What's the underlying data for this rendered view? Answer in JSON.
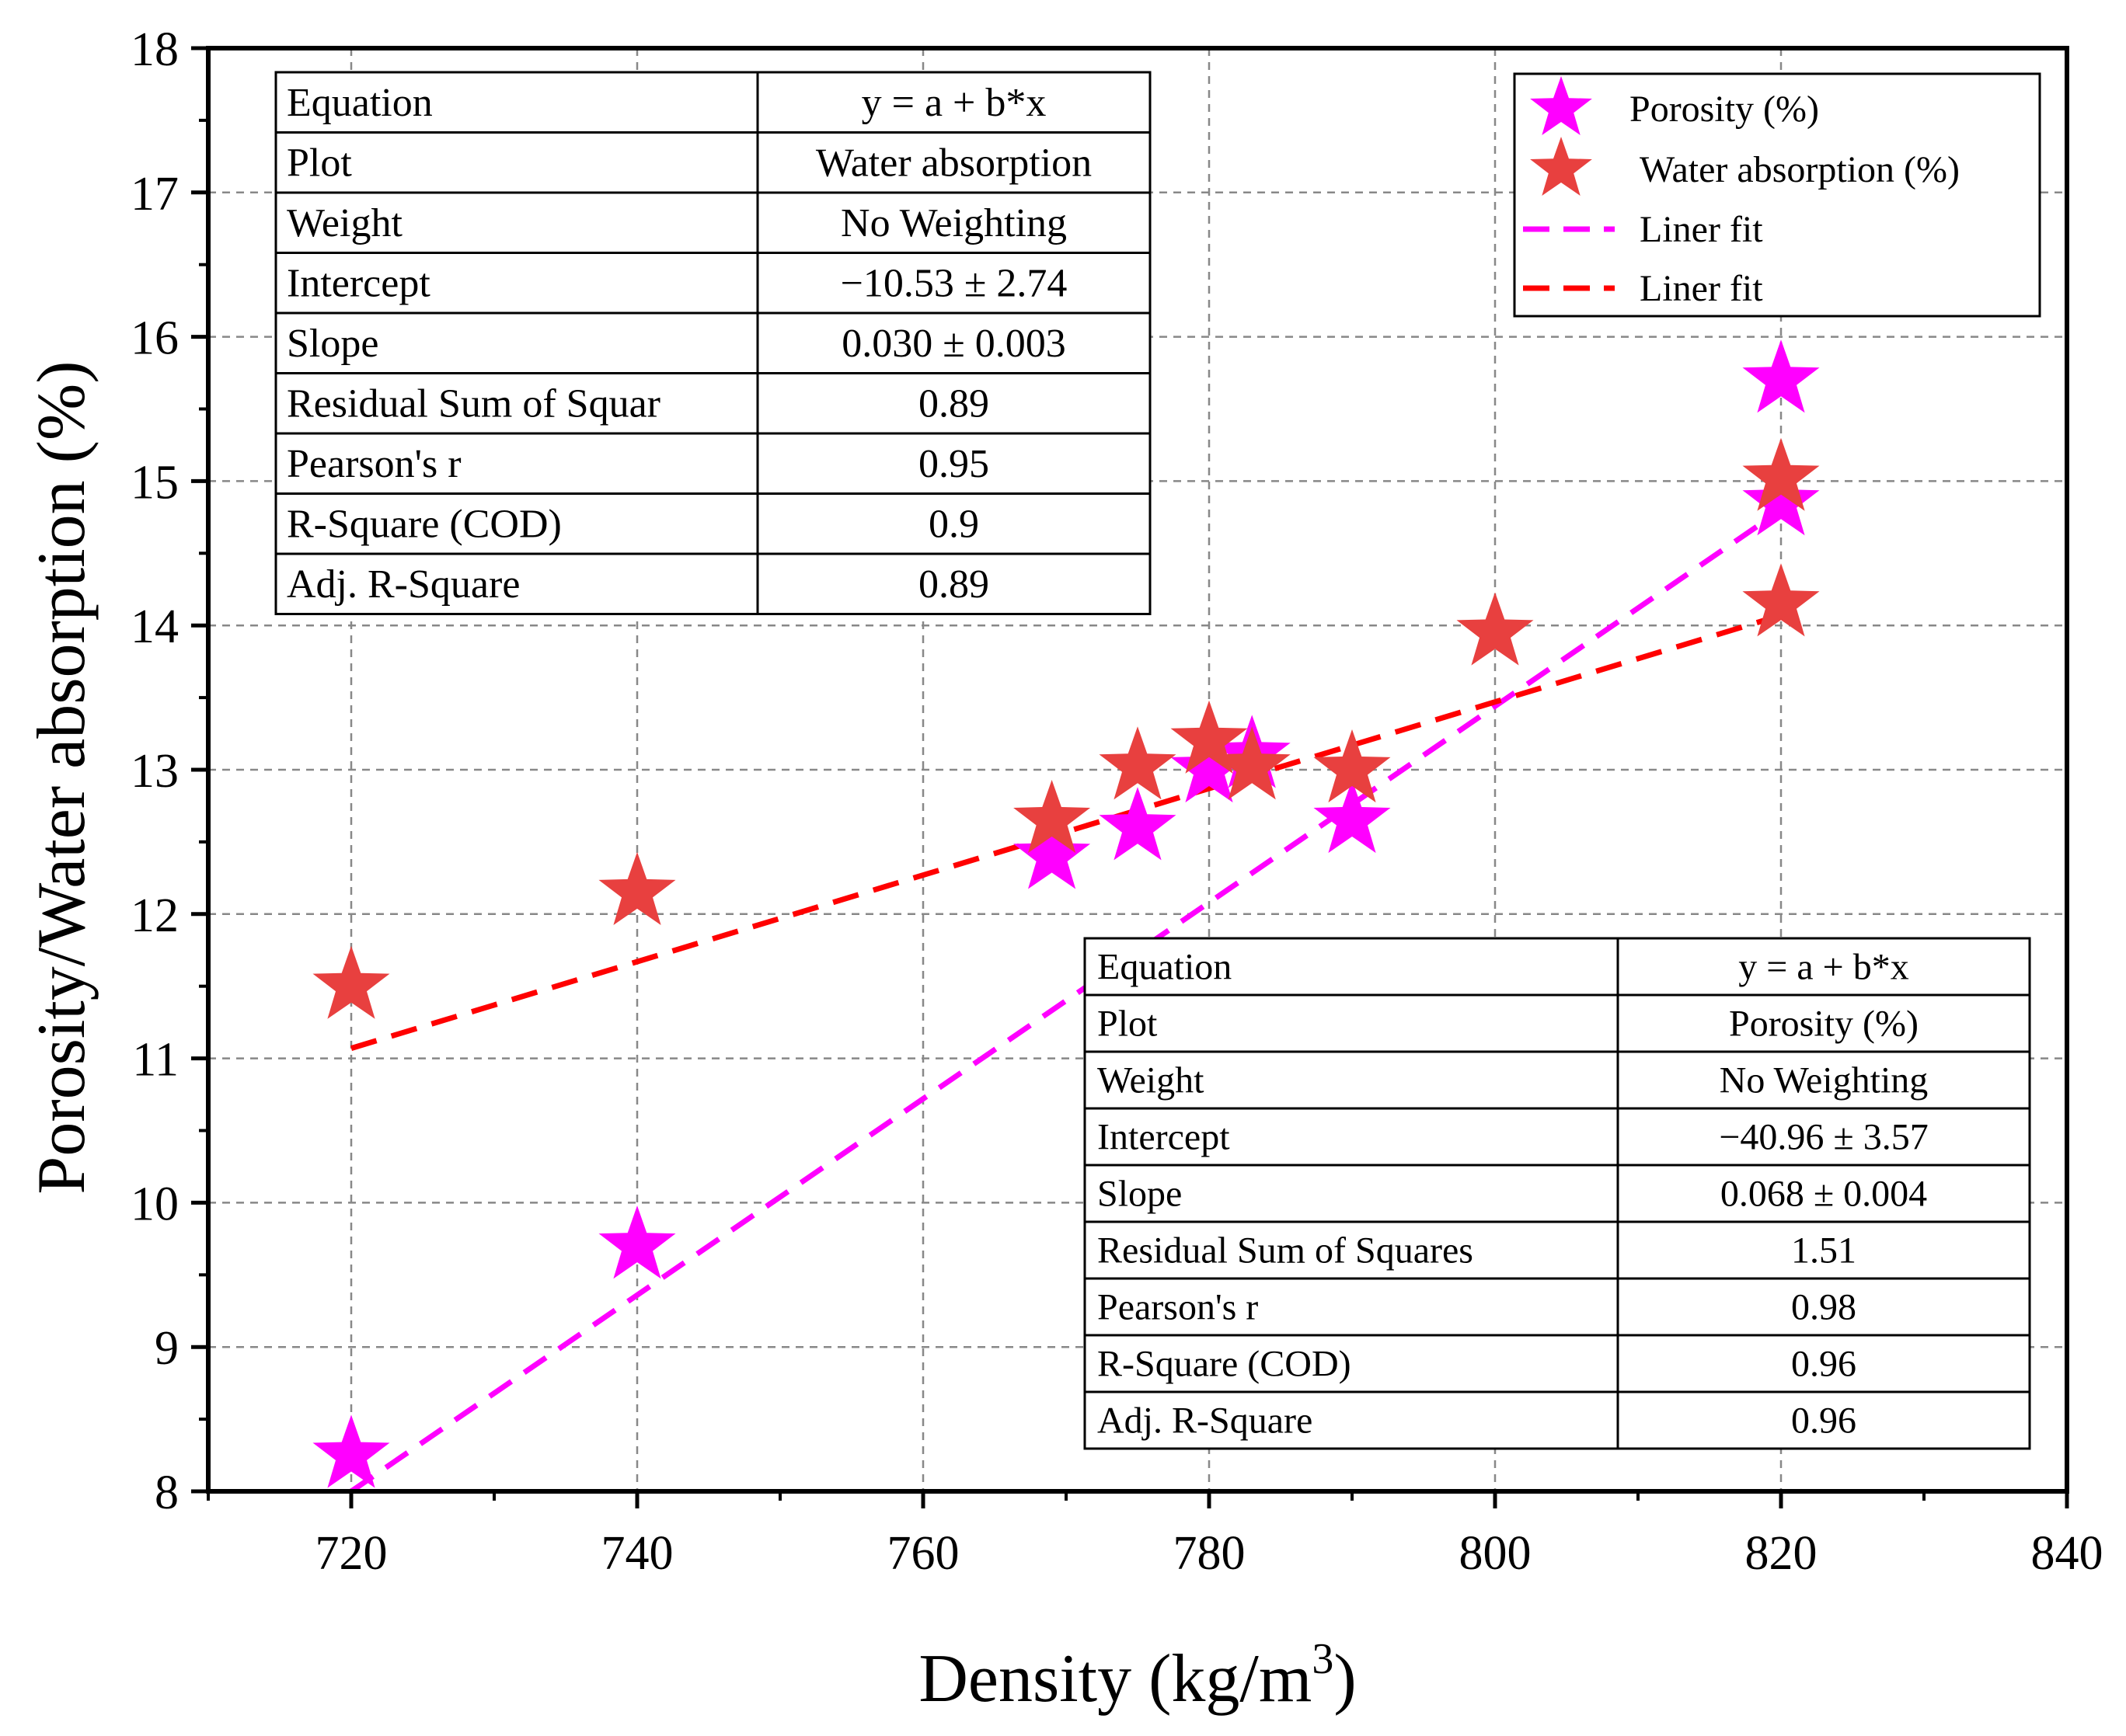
{
  "chart_data": {
    "type": "scatter",
    "title": "",
    "xlabel": "Density (kg/m",
    "xlabel_sup": "3",
    "xlabel_end": ")",
    "ylabel": "Porosity/Water absorption (%)",
    "xlim": [
      710,
      840
    ],
    "ylim": [
      8,
      18
    ],
    "xticks": [
      720,
      740,
      760,
      780,
      800,
      820,
      840
    ],
    "yticks": [
      8,
      9,
      10,
      11,
      12,
      13,
      14,
      15,
      16,
      17,
      18
    ],
    "grid": true,
    "legend_position": "top-right",
    "series": [
      {
        "name": "Porosity (%)",
        "kind": "scatter",
        "marker": "star",
        "color": "#ff00ff",
        "points": [
          {
            "x": 720,
            "y": 8.25
          },
          {
            "x": 740,
            "y": 9.7
          },
          {
            "x": 769,
            "y": 12.4
          },
          {
            "x": 775,
            "y": 12.6
          },
          {
            "x": 780,
            "y": 13.0
          },
          {
            "x": 783,
            "y": 13.1
          },
          {
            "x": 790,
            "y": 12.65
          },
          {
            "x": 820,
            "y": 14.85
          },
          {
            "x": 820,
            "y": 15.7
          }
        ]
      },
      {
        "name": "Water absorption (%)",
        "kind": "scatter",
        "marker": "star",
        "color": "#e8403f",
        "points": [
          {
            "x": 720,
            "y": 11.5
          },
          {
            "x": 740,
            "y": 12.15
          },
          {
            "x": 769,
            "y": 12.65
          },
          {
            "x": 775,
            "y": 13.02
          },
          {
            "x": 780,
            "y": 13.2
          },
          {
            "x": 783,
            "y": 13.02
          },
          {
            "x": 790,
            "y": 13.0
          },
          {
            "x": 800,
            "y": 13.95
          },
          {
            "x": 820,
            "y": 14.15
          },
          {
            "x": 820,
            "y": 15.02
          }
        ]
      },
      {
        "name": "Liner fit",
        "kind": "line",
        "dash": true,
        "color": "#ff00ff",
        "intercept": -40.96,
        "slope": 0.068,
        "x_range": [
          720,
          820
        ]
      },
      {
        "name": "Liner fit",
        "kind": "line",
        "dash": true,
        "color": "#ff0000",
        "intercept": -10.53,
        "slope": 0.03,
        "x_range": [
          720,
          820
        ]
      }
    ],
    "tables": [
      {
        "position": "top-left",
        "rows": [
          [
            "Equation",
            "y = a + b*x"
          ],
          [
            "Plot",
            "Water absorption"
          ],
          [
            "Weight",
            "No Weighting"
          ],
          [
            "Intercept",
            "−10.53 ± 2.74"
          ],
          [
            "Slope",
            "0.030 ± 0.003"
          ],
          [
            "Residual Sum of Squar",
            "0.89"
          ],
          [
            "Pearson's r",
            "0.95"
          ],
          [
            "R-Square (COD)",
            "0.9"
          ],
          [
            "Adj. R-Square",
            "0.89"
          ]
        ]
      },
      {
        "position": "bottom-right",
        "rows": [
          [
            "Equation",
            "y = a + b*x"
          ],
          [
            "Plot",
            "Porosity (%)"
          ],
          [
            "Weight",
            "No Weighting"
          ],
          [
            "Intercept",
            "−40.96 ± 3.57"
          ],
          [
            "Slope",
            "0.068 ± 0.004"
          ],
          [
            "Residual Sum of Squares",
            "1.51"
          ],
          [
            "Pearson's r",
            "0.98"
          ],
          [
            "R-Square (COD)",
            "0.96"
          ],
          [
            "Adj. R-Square",
            "0.96"
          ]
        ]
      }
    ]
  }
}
